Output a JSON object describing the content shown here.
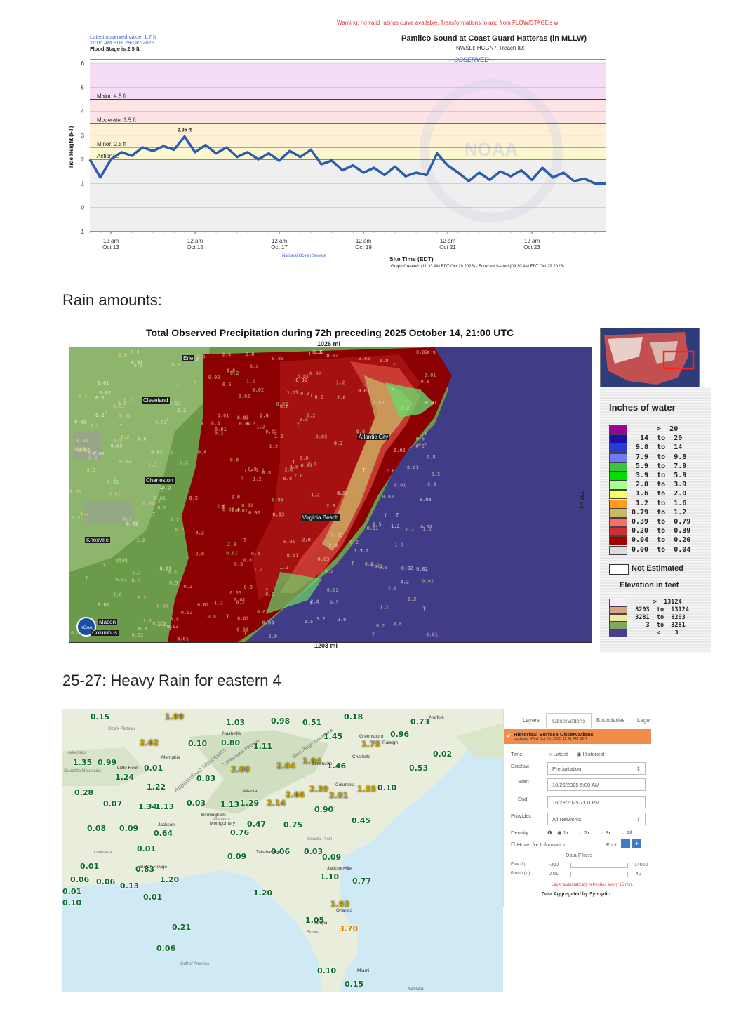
{
  "hydrograph": {
    "warning_text": "Warning: no valid ratings curve available. Transformations to and from FLOW/STAGE's w",
    "latest_value": "Latest observed value: 1.7 ft",
    "latest_time": "11:06 AM EDT 29-Oct-2025",
    "flood_stage": "Flood Stage is 2.5 ft",
    "title": "Pamlico Sound at Coast Guard Hatteras (in MLLW)",
    "subtitle": "NWSLI: HCGN7, Reach ID:",
    "observed_label": "OBSERVED",
    "y_axis_label": "Tide Height (FT)",
    "x_axis_label": "Site Time (EDT)",
    "peak_label": "2.95 ft",
    "thresholds": [
      {
        "label": "Major: 4.5 ft",
        "value": 4.5
      },
      {
        "label": "Moderate: 3.5 ft",
        "value": 3.5
      },
      {
        "label": "Minor: 2.5 ft",
        "value": 2.5
      },
      {
        "label": "Action: 2",
        "value": 2.0
      }
    ],
    "y_ticks": [
      "6",
      "5",
      "4",
      "3",
      "2",
      "1",
      "0",
      "-1"
    ],
    "x_ticks": [
      {
        "time": "12 am",
        "date": "Oct 13"
      },
      {
        "time": "12 am",
        "date": "Oct 15"
      },
      {
        "time": "12 am",
        "date": "Oct 17"
      },
      {
        "time": "12 am",
        "date": "Oct 19"
      },
      {
        "time": "12 am",
        "date": "Oct 21"
      },
      {
        "time": "12 am",
        "date": "Oct 23"
      }
    ],
    "source": "National Ocean Service",
    "footer": "Graph Created: (11:33 AM EDT Oct 29 2025) - Forecast Issued (09:30 AM EDT Oct 29 2025)",
    "watermark": "NOAA",
    "colors": {
      "line": "#2b5cb0",
      "major": "#f6ddf6",
      "moderate": "#fde3e3",
      "minor": "#fdf0d5",
      "action": "#fbf7cf",
      "normal": "#efefef"
    }
  },
  "chart_data": {
    "type": "line",
    "title": "Pamlico Sound at Coast Guard Hatteras (in MLLW)",
    "xlabel": "Site Time (EDT)",
    "ylabel": "Tide Height (FT)",
    "ylim": [
      -1,
      6
    ],
    "x": [
      "Oct 12 12:00",
      "Oct 12 18:00",
      "Oct 13 00:00",
      "Oct 13 06:00",
      "Oct 13 12:00",
      "Oct 13 18:00",
      "Oct 14 00:00",
      "Oct 14 06:00",
      "Oct 14 12:00",
      "Oct 14 18:00",
      "Oct 15 00:00",
      "Oct 15 06:00",
      "Oct 15 12:00",
      "Oct 15 18:00",
      "Oct 16 00:00",
      "Oct 16 06:00",
      "Oct 16 12:00",
      "Oct 16 18:00",
      "Oct 17 00:00",
      "Oct 17 06:00",
      "Oct 17 12:00",
      "Oct 17 18:00",
      "Oct 18 00:00",
      "Oct 18 06:00",
      "Oct 18 12:00",
      "Oct 18 18:00",
      "Oct 19 00:00",
      "Oct 19 06:00",
      "Oct 19 12:00",
      "Oct 19 18:00",
      "Oct 20 00:00",
      "Oct 20 06:00",
      "Oct 20 12:00",
      "Oct 20 18:00",
      "Oct 21 00:00",
      "Oct 21 06:00",
      "Oct 21 12:00",
      "Oct 21 18:00",
      "Oct 22 00:00",
      "Oct 22 06:00",
      "Oct 22 12:00",
      "Oct 22 18:00",
      "Oct 23 00:00",
      "Oct 23 06:00",
      "Oct 23 12:00",
      "Oct 23 18:00",
      "Oct 24 00:00",
      "Oct 24 06:00",
      "Oct 24 12:00",
      "Oct 24 18:00"
    ],
    "series": [
      {
        "values": [
          2.0,
          1.25,
          2.0,
          2.3,
          2.15,
          2.5,
          2.35,
          2.55,
          2.4,
          2.95,
          2.3,
          2.6,
          2.25,
          2.5,
          2.1,
          2.3,
          2.0,
          2.25,
          1.95,
          2.35,
          2.1,
          2.4,
          1.8,
          1.95,
          1.55,
          1.75,
          1.45,
          1.65,
          1.35,
          1.7,
          1.3,
          1.45,
          1.35,
          2.25,
          1.75,
          1.45,
          1.1,
          1.45,
          1.15,
          1.5,
          1.3,
          1.55,
          1.15,
          1.65,
          1.25,
          1.45,
          1.1,
          1.2,
          1.0,
          1.0
        ]
      }
    ]
  },
  "headings": {
    "rain": "Rain amounts:",
    "heavy": "25-27: Heavy Rain for eastern 4"
  },
  "precip_map": {
    "title": "Total Observed Precipitation during 72h preceding 2025 October 14, 21:00 UTC",
    "top_scale": "1026 mi",
    "bottom_scale": "1203 mi",
    "side_scale": "798 mi",
    "legend_title": "Inches of water",
    "legend": [
      {
        "text": "      >  20",
        "color": "#9b0099"
      },
      {
        "text": "  14  to  20",
        "color": "#1c0fa8"
      },
      {
        "text": " 9.8  to  14",
        "color": "#2a38d6"
      },
      {
        "text": " 7.9  to  9.8",
        "color": "#6d7aff"
      },
      {
        "text": " 5.9  to  7.9",
        "color": "#3dc43d"
      },
      {
        "text": " 3.9  to  5.9",
        "color": "#00e000"
      },
      {
        "text": " 2.0  to  3.9",
        "color": "#a8ff8c"
      },
      {
        "text": " 1.6  to  2.0",
        "color": "#f6ff66"
      },
      {
        "text": " 1.2  to  1.6",
        "color": "#ff9d1c"
      },
      {
        "text": "0.79  to  1.2",
        "color": "#c9b766"
      },
      {
        "text": "0.39  to  0.79",
        "color": "#ff6b6b"
      },
      {
        "text": "0.20  to  0.39",
        "color": "#d03030"
      },
      {
        "text": "0.04  to  0.20",
        "color": "#a30000"
      },
      {
        "text": "0.00  to  0.04",
        "color": "#dddddd"
      }
    ],
    "not_estimated": "Not Estimated",
    "elevation_title": "Elevation in feet",
    "elevation": [
      {
        "text": "      >  13124",
        "color": "#fbe9fb"
      },
      {
        "text": " 8203  to  13124",
        "color": "#d6a586"
      },
      {
        "text": " 3281  to  8203",
        "color": "#f0e7a0"
      },
      {
        "text": "    3  to  3281",
        "color": "#7fa85a"
      },
      {
        "text": "       <    3",
        "color": "#4a3f8f"
      }
    ],
    "place_labels": [
      "Cleveland",
      "Charleston",
      "Knoxville",
      "Macon",
      "Columbus",
      "Erie",
      "Virginia Beach",
      "Atlantic City"
    ]
  },
  "obs_map": {
    "values": [
      {
        "v": "0.15",
        "c": "g"
      },
      {
        "v": "1.99",
        "c": "y"
      },
      {
        "v": "1.03",
        "c": "g"
      },
      {
        "v": "0.98",
        "c": "g"
      },
      {
        "v": "0.51",
        "c": "g"
      },
      {
        "v": "0.18",
        "c": "g"
      },
      {
        "v": "0.96",
        "c": "g"
      },
      {
        "v": "0.73",
        "c": "g"
      },
      {
        "v": "2.62",
        "c": "y"
      },
      {
        "v": "0.10",
        "c": "g"
      },
      {
        "v": "0.80",
        "c": "g"
      },
      {
        "v": "1.11",
        "c": "g"
      },
      {
        "v": "1.45",
        "c": "g"
      },
      {
        "v": "1.75",
        "c": "y"
      },
      {
        "v": "0.02",
        "c": "g"
      },
      {
        "v": "1.35",
        "c": "g"
      },
      {
        "v": "0.99",
        "c": "g"
      },
      {
        "v": "0.01",
        "c": "g"
      },
      {
        "v": "2.00",
        "c": "y"
      },
      {
        "v": "2.04",
        "c": "y"
      },
      {
        "v": "1.94",
        "c": "y"
      },
      {
        "v": "1.46",
        "c": "g"
      },
      {
        "v": "0.53",
        "c": "g"
      },
      {
        "v": "1.24",
        "c": "g"
      },
      {
        "v": "0.83",
        "c": "g"
      },
      {
        "v": "0.28",
        "c": "g"
      },
      {
        "v": "1.22",
        "c": "g"
      },
      {
        "v": "2.39",
        "c": "y"
      },
      {
        "v": "2.66",
        "c": "y"
      },
      {
        "v": "2.01",
        "c": "y"
      },
      {
        "v": "1.55",
        "c": "y"
      },
      {
        "v": "0.10",
        "c": "g"
      },
      {
        "v": "0.07",
        "c": "g"
      },
      {
        "v": "1.34",
        "c": "g"
      },
      {
        "v": "1.13",
        "c": "g"
      },
      {
        "v": "0.03",
        "c": "g"
      },
      {
        "v": "1.13",
        "c": "g"
      },
      {
        "v": "1.29",
        "c": "g"
      },
      {
        "v": "2.14",
        "c": "y"
      },
      {
        "v": "0.90",
        "c": "g"
      },
      {
        "v": "0.08",
        "c": "g"
      },
      {
        "v": "0.09",
        "c": "g"
      },
      {
        "v": "0.64",
        "c": "g"
      },
      {
        "v": "0.47",
        "c": "g"
      },
      {
        "v": "0.76",
        "c": "g"
      },
      {
        "v": "0.75",
        "c": "g"
      },
      {
        "v": "0.45",
        "c": "g"
      },
      {
        "v": "0.01",
        "c": "g"
      },
      {
        "v": "0.09",
        "c": "g"
      },
      {
        "v": "0.06",
        "c": "g"
      },
      {
        "v": "0.03",
        "c": "g"
      },
      {
        "v": "0.09",
        "c": "g"
      },
      {
        "v": "0.01",
        "c": "g"
      },
      {
        "v": "0.83",
        "c": "g"
      },
      {
        "v": "0.06",
        "c": "g"
      },
      {
        "v": "1.20",
        "c": "g"
      },
      {
        "v": "1.10",
        "c": "g"
      },
      {
        "v": "0.77",
        "c": "g"
      },
      {
        "v": "0.06",
        "c": "g"
      },
      {
        "v": "0.01",
        "c": "g"
      },
      {
        "v": "0.13",
        "c": "g"
      },
      {
        "v": "0.10",
        "c": "g"
      },
      {
        "v": "0.01",
        "c": "g"
      },
      {
        "v": "1.20",
        "c": "g"
      },
      {
        "v": "1.93",
        "c": "y"
      },
      {
        "v": "1.05",
        "c": "g"
      },
      {
        "v": "3.70",
        "c": "o"
      },
      {
        "v": "0.21",
        "c": "g"
      },
      {
        "v": "0.06",
        "c": "g"
      },
      {
        "v": "0.10",
        "c": "g"
      },
      {
        "v": "0.15",
        "c": "g"
      }
    ],
    "cities": [
      "Nashville",
      "Greensboro",
      "Raleigh",
      "Charlotte",
      "Memphis",
      "Little Rock",
      "Atlanta",
      "Columbia",
      "Greenville",
      "Jackson",
      "Montgomery",
      "Tallahassee",
      "Jacksonville",
      "Orlando",
      "Tampa",
      "Baton Rouge",
      "Miami",
      "Norfolk",
      "Nassau",
      "Birmingham"
    ],
    "regions": [
      "Ozark Plateau",
      "Arkansas",
      "Ouachita Mountains",
      "Louisiana",
      "Alabama",
      "Florida",
      "Gulf of America",
      "Appalachian Mountains",
      "Cumberland Plateau",
      "Blue Ridge Mountains",
      "Coastal Plain"
    ]
  },
  "obs_panel": {
    "tabs": [
      "Layers",
      "Observations",
      "Boundaries",
      "Legend"
    ],
    "header_title": "Historical Surface Observations",
    "header_updated": "Updated: Wed Oct 29, 2025 11:41 AM EDT",
    "time_label": "Time:",
    "time_latest": "Latest",
    "time_historical": "Historical",
    "display_label": "Display:",
    "display_value": "Precipitation",
    "start_label": "Start",
    "start_value": "10/26/2025 5:00 AM",
    "end_label": "End",
    "end_value": "10/28/2025 7:00 PM",
    "provider_label": "Provider:",
    "provider_value": "All Networks",
    "density_label": "Density:",
    "density_options": [
      "1x",
      "2x",
      "3x",
      "All"
    ],
    "hover_label": "Hover for Information",
    "font_label": "Font:",
    "filters_title": "Data Filters",
    "elev_label": "Elev (ft):",
    "elev_min": "-300",
    "elev_max": "14000",
    "precip_label": "Precip (in):",
    "precip_min": "0.01",
    "precip_max": "40",
    "refresh_note": "Layer automatically refreshes every 15 min.",
    "aggregated": "Data Aggregated by Synoptic",
    "accent": "#f28c4a"
  }
}
